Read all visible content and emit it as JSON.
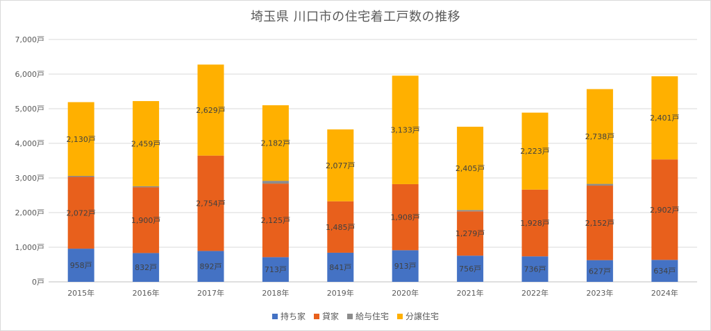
{
  "chart_data": {
    "type": "bar",
    "stacked": true,
    "title": "埼玉県 川口市の住宅着工戸数の推移",
    "xlabel": "",
    "ylabel": "",
    "ylim": [
      0,
      7000
    ],
    "y_ticks": [
      "0戸",
      "1,000戸",
      "2,000戸",
      "3,000戸",
      "4,000戸",
      "5,000戸",
      "6,000戸",
      "7,000戸"
    ],
    "grid": true,
    "legend_position": "bottom",
    "categories": [
      "2015年",
      "2016年",
      "2017年",
      "2018年",
      "2019年",
      "2020年",
      "2021年",
      "2022年",
      "2023年",
      "2024年"
    ],
    "series": [
      {
        "name": "持ち家",
        "color": "#4472c4",
        "values": [
          958,
          832,
          892,
          713,
          841,
          913,
          756,
          736,
          627,
          634
        ],
        "labels": [
          "958戸",
          "832戸",
          "892戸",
          "713戸",
          "841戸",
          "913戸",
          "756戸",
          "736戸",
          "627戸",
          "634戸"
        ]
      },
      {
        "name": "貸家",
        "color": "#e8601c",
        "values": [
          2072,
          1900,
          2754,
          2125,
          1485,
          1908,
          1279,
          1928,
          2152,
          2902
        ],
        "labels": [
          "2,072戸",
          "1,900戸",
          "2,754戸",
          "2,125戸",
          "1,485戸",
          "1,908戸",
          "1,279戸",
          "1,928戸",
          "2,152戸",
          "2,902戸"
        ]
      },
      {
        "name": "給与住宅",
        "color": "#8c8c8c",
        "values": [
          30,
          30,
          0,
          80,
          0,
          0,
          40,
          0,
          50,
          0
        ],
        "labels": []
      },
      {
        "name": "分譲住宅",
        "color": "#ffb000",
        "values": [
          2130,
          2459,
          2629,
          2182,
          2077,
          3133,
          2405,
          2223,
          2738,
          2401
        ],
        "labels": [
          "2,130戸",
          "2,459戸",
          "2,629戸",
          "2,182戸",
          "2,077戸",
          "3,133戸",
          "2,405戸",
          "2,223戸",
          "2,738戸",
          "2,401戸"
        ]
      }
    ]
  }
}
